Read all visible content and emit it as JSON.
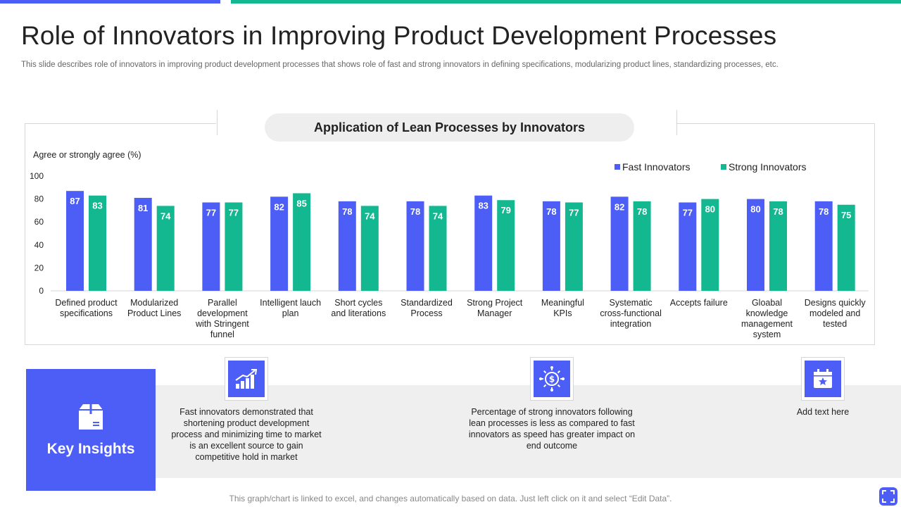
{
  "slide": {
    "title": "Role of Innovators in Improving Product Development Processes",
    "subtitle": "This slide describes role of innovators in improving product development processes that shows role of fast and strong innovators in defining specifications, modularizing product lines, standardizing processes, etc.",
    "footer_note": "This graph/chart is linked to excel, and changes automatically based on data. Just left click on it and select “Edit Data”."
  },
  "colors": {
    "fast": "#4d5ef6",
    "strong": "#14b890",
    "accent": "#4d5ef6"
  },
  "chart_data": {
    "type": "bar",
    "title": "Application of Lean Processes by Innovators",
    "ylabel": "Agree or strongly agree (%)",
    "xlabel": "",
    "ylim": [
      0,
      100
    ],
    "yticks": [
      0,
      20,
      40,
      60,
      80,
      100
    ],
    "grid": false,
    "legend_position": "top-right",
    "categories": [
      [
        "Defined product",
        "specifications"
      ],
      [
        "Modularized",
        "Product Lines"
      ],
      [
        "Parallel",
        "development",
        "with Stringent",
        "funnel"
      ],
      [
        "Intelligent lauch",
        "plan"
      ],
      [
        "Short cycles",
        "and literations"
      ],
      [
        "Standardized",
        "Process"
      ],
      [
        "Strong Project",
        "Manager"
      ],
      [
        "Meaningful",
        "KPIs"
      ],
      [
        "Systematic",
        "cross-functional",
        "integration"
      ],
      [
        "Accepts failure"
      ],
      [
        "Gloabal",
        "knowledge",
        "management",
        "system"
      ],
      [
        "Designs quickly",
        "modeled and",
        "tested"
      ]
    ],
    "series": [
      {
        "name": "Fast Innovators",
        "values": [
          87,
          81,
          77,
          82,
          78,
          78,
          83,
          78,
          82,
          77,
          80,
          78
        ]
      },
      {
        "name": "Strong Innovators",
        "values": [
          83,
          74,
          77,
          85,
          74,
          74,
          79,
          77,
          78,
          80,
          78,
          75
        ]
      }
    ]
  },
  "insights": {
    "heading": "Key Insights",
    "items": [
      {
        "icon": "growth-chart-icon",
        "text": [
          "Fast innovators  demonstrated  that",
          "shortening product development",
          "process and minimizing time to market",
          "is an excellent source to gain",
          "competitive hold in market"
        ]
      },
      {
        "icon": "dollar-gear-icon",
        "text": [
          "Percentage of strong innovators  following",
          "lean processes is less as compared  to fast",
          "innovators  as speed has greater impact on",
          "end outcome"
        ]
      },
      {
        "icon": "calendar-star-icon",
        "text": [
          "Add text here"
        ]
      }
    ]
  }
}
